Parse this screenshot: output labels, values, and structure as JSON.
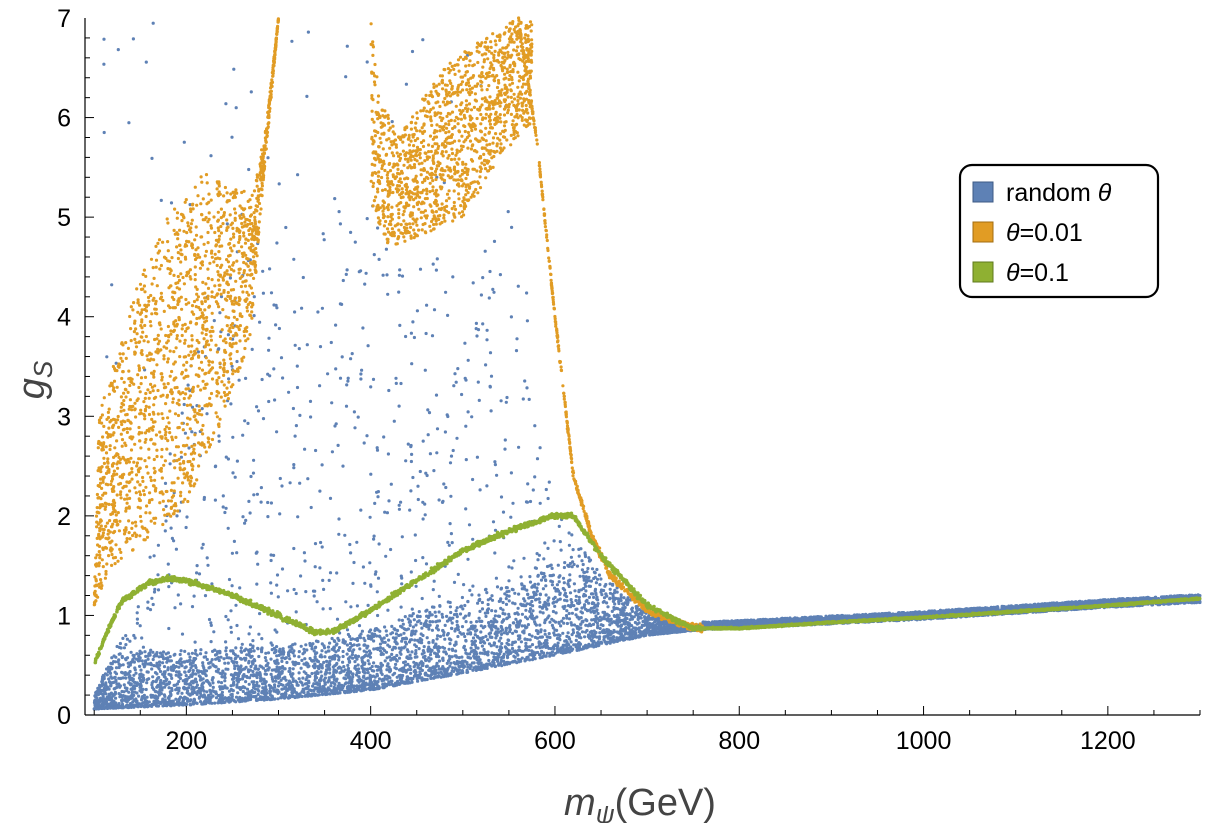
{
  "chart_data": {
    "type": "scatter",
    "title": "",
    "xlabel": {
      "symbol": "m",
      "subscript": "ψ",
      "unit": "(GeV)"
    },
    "ylabel": {
      "symbol": "g",
      "subscript": "S"
    },
    "xlim": [
      90,
      1300
    ],
    "ylim": [
      0,
      7
    ],
    "xticks": [
      200,
      400,
      600,
      800,
      1000,
      1200
    ],
    "yticks": [
      0,
      1,
      2,
      3,
      4,
      5,
      6,
      7
    ],
    "grid": false,
    "legend_position": "right",
    "series": [
      {
        "name": "random θ",
        "legend_text": "random ",
        "legend_italic": "θ",
        "color": "#5E81B5",
        "description": "scattered points; dense band near lower boundary g ≈ 0.08–1.0 for m < 750, merging into narrow curve for m > 750; sparse points up to g ≈ 7",
        "lower_boundary": [
          [
            100,
            0.06
          ],
          [
            200,
            0.1
          ],
          [
            300,
            0.16
          ],
          [
            400,
            0.25
          ],
          [
            500,
            0.42
          ],
          [
            600,
            0.6
          ],
          [
            700,
            0.8
          ],
          [
            750,
            0.85
          ],
          [
            800,
            0.87
          ],
          [
            1000,
            0.96
          ],
          [
            1200,
            1.08
          ],
          [
            1300,
            1.13
          ]
        ],
        "upper_envelope": [
          [
            100,
            0.2
          ],
          [
            150,
            1.2
          ],
          [
            200,
            3.5
          ],
          [
            250,
            4.8
          ],
          [
            300,
            5.3
          ],
          [
            350,
            5.4
          ],
          [
            400,
            5.2
          ],
          [
            500,
            4.4
          ],
          [
            550,
            5.1
          ],
          [
            600,
            2.1
          ],
          [
            650,
            1.4
          ],
          [
            700,
            1.05
          ],
          [
            750,
            0.9
          ],
          [
            1300,
            1.18
          ]
        ]
      },
      {
        "name": "θ=0.01",
        "legend_text": "=0.01",
        "legend_italic": "θ",
        "color": "#E19C24",
        "description": "band of points at high g for m < 300, 400–580; drops steeply between 600 and 760 onto the line g ≈ 0.85",
        "upper_curve": [
          [
            100,
            1.2
          ],
          [
            105,
            3.0
          ],
          [
            120,
            3.5
          ],
          [
            150,
            4.4
          ],
          [
            180,
            5.0
          ],
          [
            220,
            5.45
          ],
          [
            250,
            5.3
          ],
          [
            270,
            5.25
          ],
          [
            285,
            5.8
          ],
          [
            300,
            7.0
          ]
        ],
        "lower_curve": [
          [
            100,
            1.1
          ],
          [
            120,
            1.5
          ],
          [
            150,
            1.7
          ],
          [
            200,
            2.1
          ],
          [
            240,
            3.0
          ],
          [
            270,
            3.8
          ],
          [
            285,
            5.5
          ],
          [
            300,
            7.0
          ]
        ],
        "mid_upper": [
          [
            400,
            7.0
          ],
          [
            410,
            6.2
          ],
          [
            430,
            5.8
          ],
          [
            450,
            6.1
          ],
          [
            480,
            6.5
          ],
          [
            520,
            6.8
          ],
          [
            560,
            7.0
          ]
        ],
        "mid_lower": [
          [
            400,
            5.1
          ],
          [
            420,
            4.7
          ],
          [
            450,
            4.8
          ],
          [
            500,
            5.0
          ],
          [
            540,
            5.6
          ],
          [
            570,
            5.9
          ]
        ],
        "falloff": [
          [
            560,
            7.0
          ],
          [
            580,
            5.8
          ],
          [
            600,
            4.0
          ],
          [
            620,
            2.4
          ],
          [
            640,
            1.8
          ],
          [
            660,
            1.4
          ],
          [
            700,
            1.05
          ],
          [
            740,
            0.9
          ],
          [
            760,
            0.87
          ]
        ]
      },
      {
        "name": "θ=0.1",
        "legend_text": "=0.1",
        "legend_italic": "θ",
        "color": "#8FB032",
        "description": "thick continuous curve",
        "curve": [
          [
            100,
            0.5
          ],
          [
            110,
            0.75
          ],
          [
            130,
            1.15
          ],
          [
            160,
            1.33
          ],
          [
            180,
            1.37
          ],
          [
            200,
            1.35
          ],
          [
            250,
            1.2
          ],
          [
            300,
            1.0
          ],
          [
            340,
            0.83
          ],
          [
            360,
            0.84
          ],
          [
            400,
            1.05
          ],
          [
            450,
            1.35
          ],
          [
            500,
            1.65
          ],
          [
            550,
            1.85
          ],
          [
            600,
            2.0
          ],
          [
            620,
            2.0
          ],
          [
            650,
            1.6
          ],
          [
            700,
            1.1
          ],
          [
            750,
            0.87
          ],
          [
            800,
            0.87
          ],
          [
            900,
            0.93
          ],
          [
            1000,
            0.98
          ],
          [
            1100,
            1.04
          ],
          [
            1200,
            1.1
          ],
          [
            1300,
            1.17
          ]
        ]
      }
    ]
  }
}
